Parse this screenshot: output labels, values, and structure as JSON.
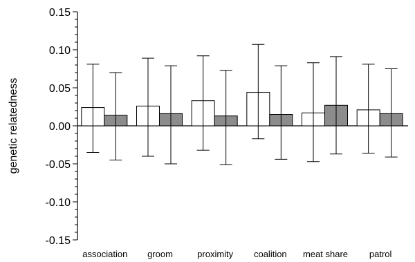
{
  "chart_data": {
    "type": "bar",
    "ylabel": "genetic relatedness",
    "xlabel": "",
    "title": "",
    "ylim": [
      -0.15,
      0.15
    ],
    "y_ticks": [
      "0.15",
      "0.10",
      "0.05",
      "0.00",
      "-0.05",
      "-0.10",
      "-0.15"
    ],
    "y_tick_values": [
      0.15,
      0.1,
      0.05,
      0.0,
      -0.05,
      -0.1,
      -0.15
    ],
    "categories": [
      "association",
      "groom",
      "proximity",
      "coalition",
      "meat share",
      "patrol"
    ],
    "legend": "none",
    "series": [
      {
        "color": "#ffffff",
        "values": [
          0.024,
          0.026,
          0.033,
          0.044,
          0.017,
          0.021
        ],
        "err_low": [
          -0.035,
          -0.04,
          -0.032,
          -0.017,
          -0.047,
          -0.036
        ],
        "err_high": [
          0.081,
          0.089,
          0.092,
          0.107,
          0.083,
          0.081
        ]
      },
      {
        "color": "#8c8c8c",
        "values": [
          0.014,
          0.016,
          0.013,
          0.015,
          0.027,
          0.016
        ],
        "err_low": [
          -0.045,
          -0.05,
          -0.051,
          -0.044,
          -0.037,
          -0.041
        ],
        "err_high": [
          0.07,
          0.079,
          0.073,
          0.079,
          0.091,
          0.075
        ]
      }
    ]
  }
}
